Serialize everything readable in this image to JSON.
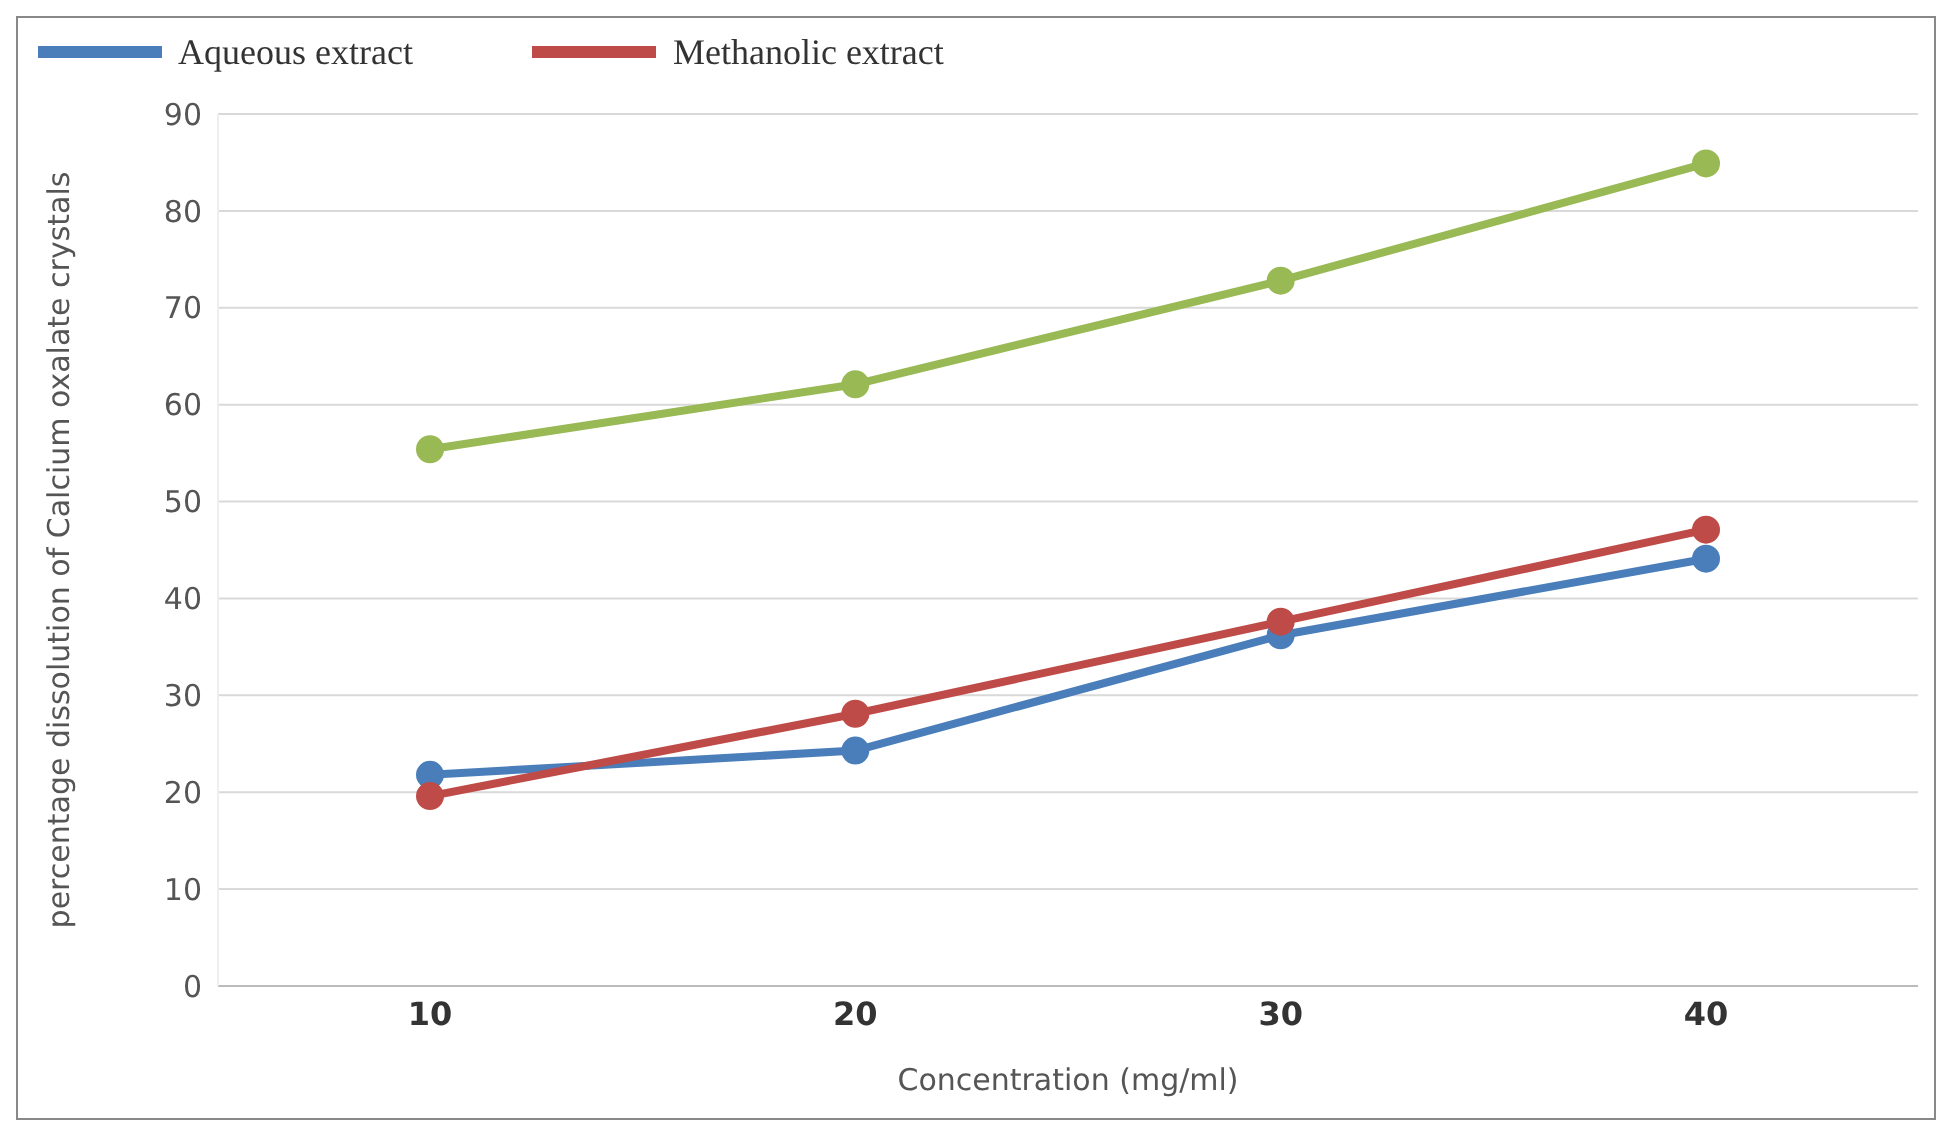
{
  "chart_data": {
    "type": "line",
    "xlabel": "Concentration (mg/ml)",
    "ylabel": "percentage dissolution of Calcium oxalate crystals",
    "categories": [
      "10",
      "20",
      "30",
      "40"
    ],
    "series": [
      {
        "name": "Aqueous extract",
        "color": "#4a7ebb",
        "values": [
          21.8,
          24.3,
          36.2,
          44.1
        ]
      },
      {
        "name": "Methanolic extract",
        "color": "#be4b48",
        "values": [
          19.6,
          28.1,
          37.6,
          47.1
        ]
      },
      {
        "color": "#98b954",
        "values": [
          55.4,
          62.1,
          72.8,
          84.9
        ]
      }
    ],
    "ylim": [
      0,
      90
    ],
    "yticks": [
      0,
      10,
      20,
      30,
      40,
      50,
      60,
      70,
      80,
      90
    ],
    "grid": "y",
    "legend": "top",
    "marker": "circle",
    "line_style": "solid"
  }
}
